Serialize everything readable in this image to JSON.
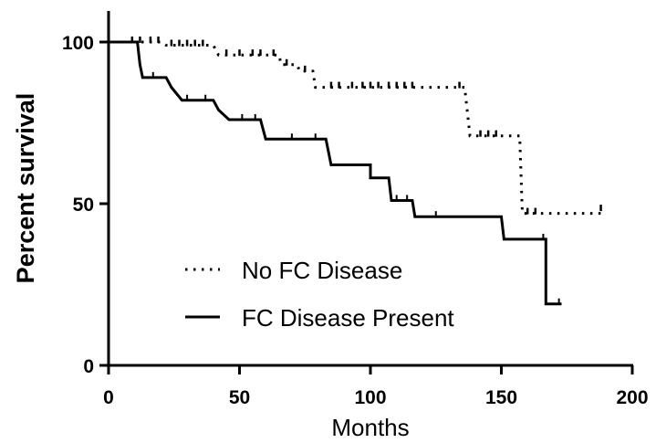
{
  "chart_data": {
    "type": "line",
    "subtype": "kaplan-meier survival curve",
    "xlabel": "Months",
    "ylabel": "Percent survival",
    "xlim": [
      0,
      200
    ],
    "ylim": [
      0,
      100
    ],
    "x_ticks": [
      0,
      50,
      100,
      150,
      200
    ],
    "y_ticks": [
      0,
      50,
      100
    ],
    "grid": false,
    "legend_position": "bottom-left",
    "series": [
      {
        "name": "No FC Disease",
        "line_style": "dotted",
        "color": "#000000",
        "steps": [
          [
            0,
            100
          ],
          [
            20,
            100
          ],
          [
            22,
            99
          ],
          [
            40,
            99
          ],
          [
            42,
            96
          ],
          [
            65,
            96
          ],
          [
            66,
            93
          ],
          [
            72,
            93
          ],
          [
            73,
            91
          ],
          [
            78,
            91
          ],
          [
            79,
            86
          ],
          [
            136,
            86
          ],
          [
            138,
            71
          ],
          [
            152,
            71
          ],
          [
            157,
            71
          ],
          [
            158,
            47
          ],
          [
            188,
            47
          ]
        ],
        "censored": [
          [
            9,
            100
          ],
          [
            12,
            100
          ],
          [
            16,
            100
          ],
          [
            19,
            100
          ],
          [
            24,
            99
          ],
          [
            27,
            99
          ],
          [
            30,
            99
          ],
          [
            33,
            99
          ],
          [
            36,
            99
          ],
          [
            45,
            96
          ],
          [
            50,
            96
          ],
          [
            55,
            96
          ],
          [
            58,
            96
          ],
          [
            63,
            96
          ],
          [
            68,
            93
          ],
          [
            75,
            91
          ],
          [
            85,
            86
          ],
          [
            88,
            86
          ],
          [
            93,
            86
          ],
          [
            97,
            86
          ],
          [
            100,
            86
          ],
          [
            103,
            86
          ],
          [
            107,
            86
          ],
          [
            110,
            86
          ],
          [
            113,
            86
          ],
          [
            116,
            86
          ],
          [
            134,
            86
          ],
          [
            142,
            71
          ],
          [
            145,
            71
          ],
          [
            148,
            71
          ],
          [
            160,
            47
          ],
          [
            163,
            47
          ],
          [
            188,
            48
          ]
        ]
      },
      {
        "name": "FC Disease Present",
        "line_style": "solid",
        "color": "#000000",
        "steps": [
          [
            0,
            100
          ],
          [
            11,
            100
          ],
          [
            12,
            93
          ],
          [
            13,
            89
          ],
          [
            22,
            89
          ],
          [
            24,
            86
          ],
          [
            28,
            82
          ],
          [
            40,
            82
          ],
          [
            42,
            79
          ],
          [
            46,
            76
          ],
          [
            58,
            76
          ],
          [
            60,
            70
          ],
          [
            83,
            70
          ],
          [
            85,
            62
          ],
          [
            100,
            62
          ],
          [
            100,
            58
          ],
          [
            107,
            58
          ],
          [
            108,
            51
          ],
          [
            116,
            51
          ],
          [
            117,
            46
          ],
          [
            150,
            46
          ],
          [
            151,
            39
          ],
          [
            167,
            39
          ],
          [
            167,
            19
          ],
          [
            173,
            19
          ]
        ],
        "censored": [
          [
            9,
            100
          ],
          [
            17,
            89
          ],
          [
            30,
            82
          ],
          [
            37,
            82
          ],
          [
            51,
            76
          ],
          [
            56,
            76
          ],
          [
            70,
            70
          ],
          [
            79,
            70
          ],
          [
            110,
            51
          ],
          [
            114,
            51
          ],
          [
            125,
            46
          ],
          [
            166,
            39
          ],
          [
            172,
            19
          ]
        ]
      }
    ]
  },
  "legend": {
    "items": [
      {
        "label": "No FC Disease"
      },
      {
        "label": "FC Disease Present"
      }
    ]
  }
}
